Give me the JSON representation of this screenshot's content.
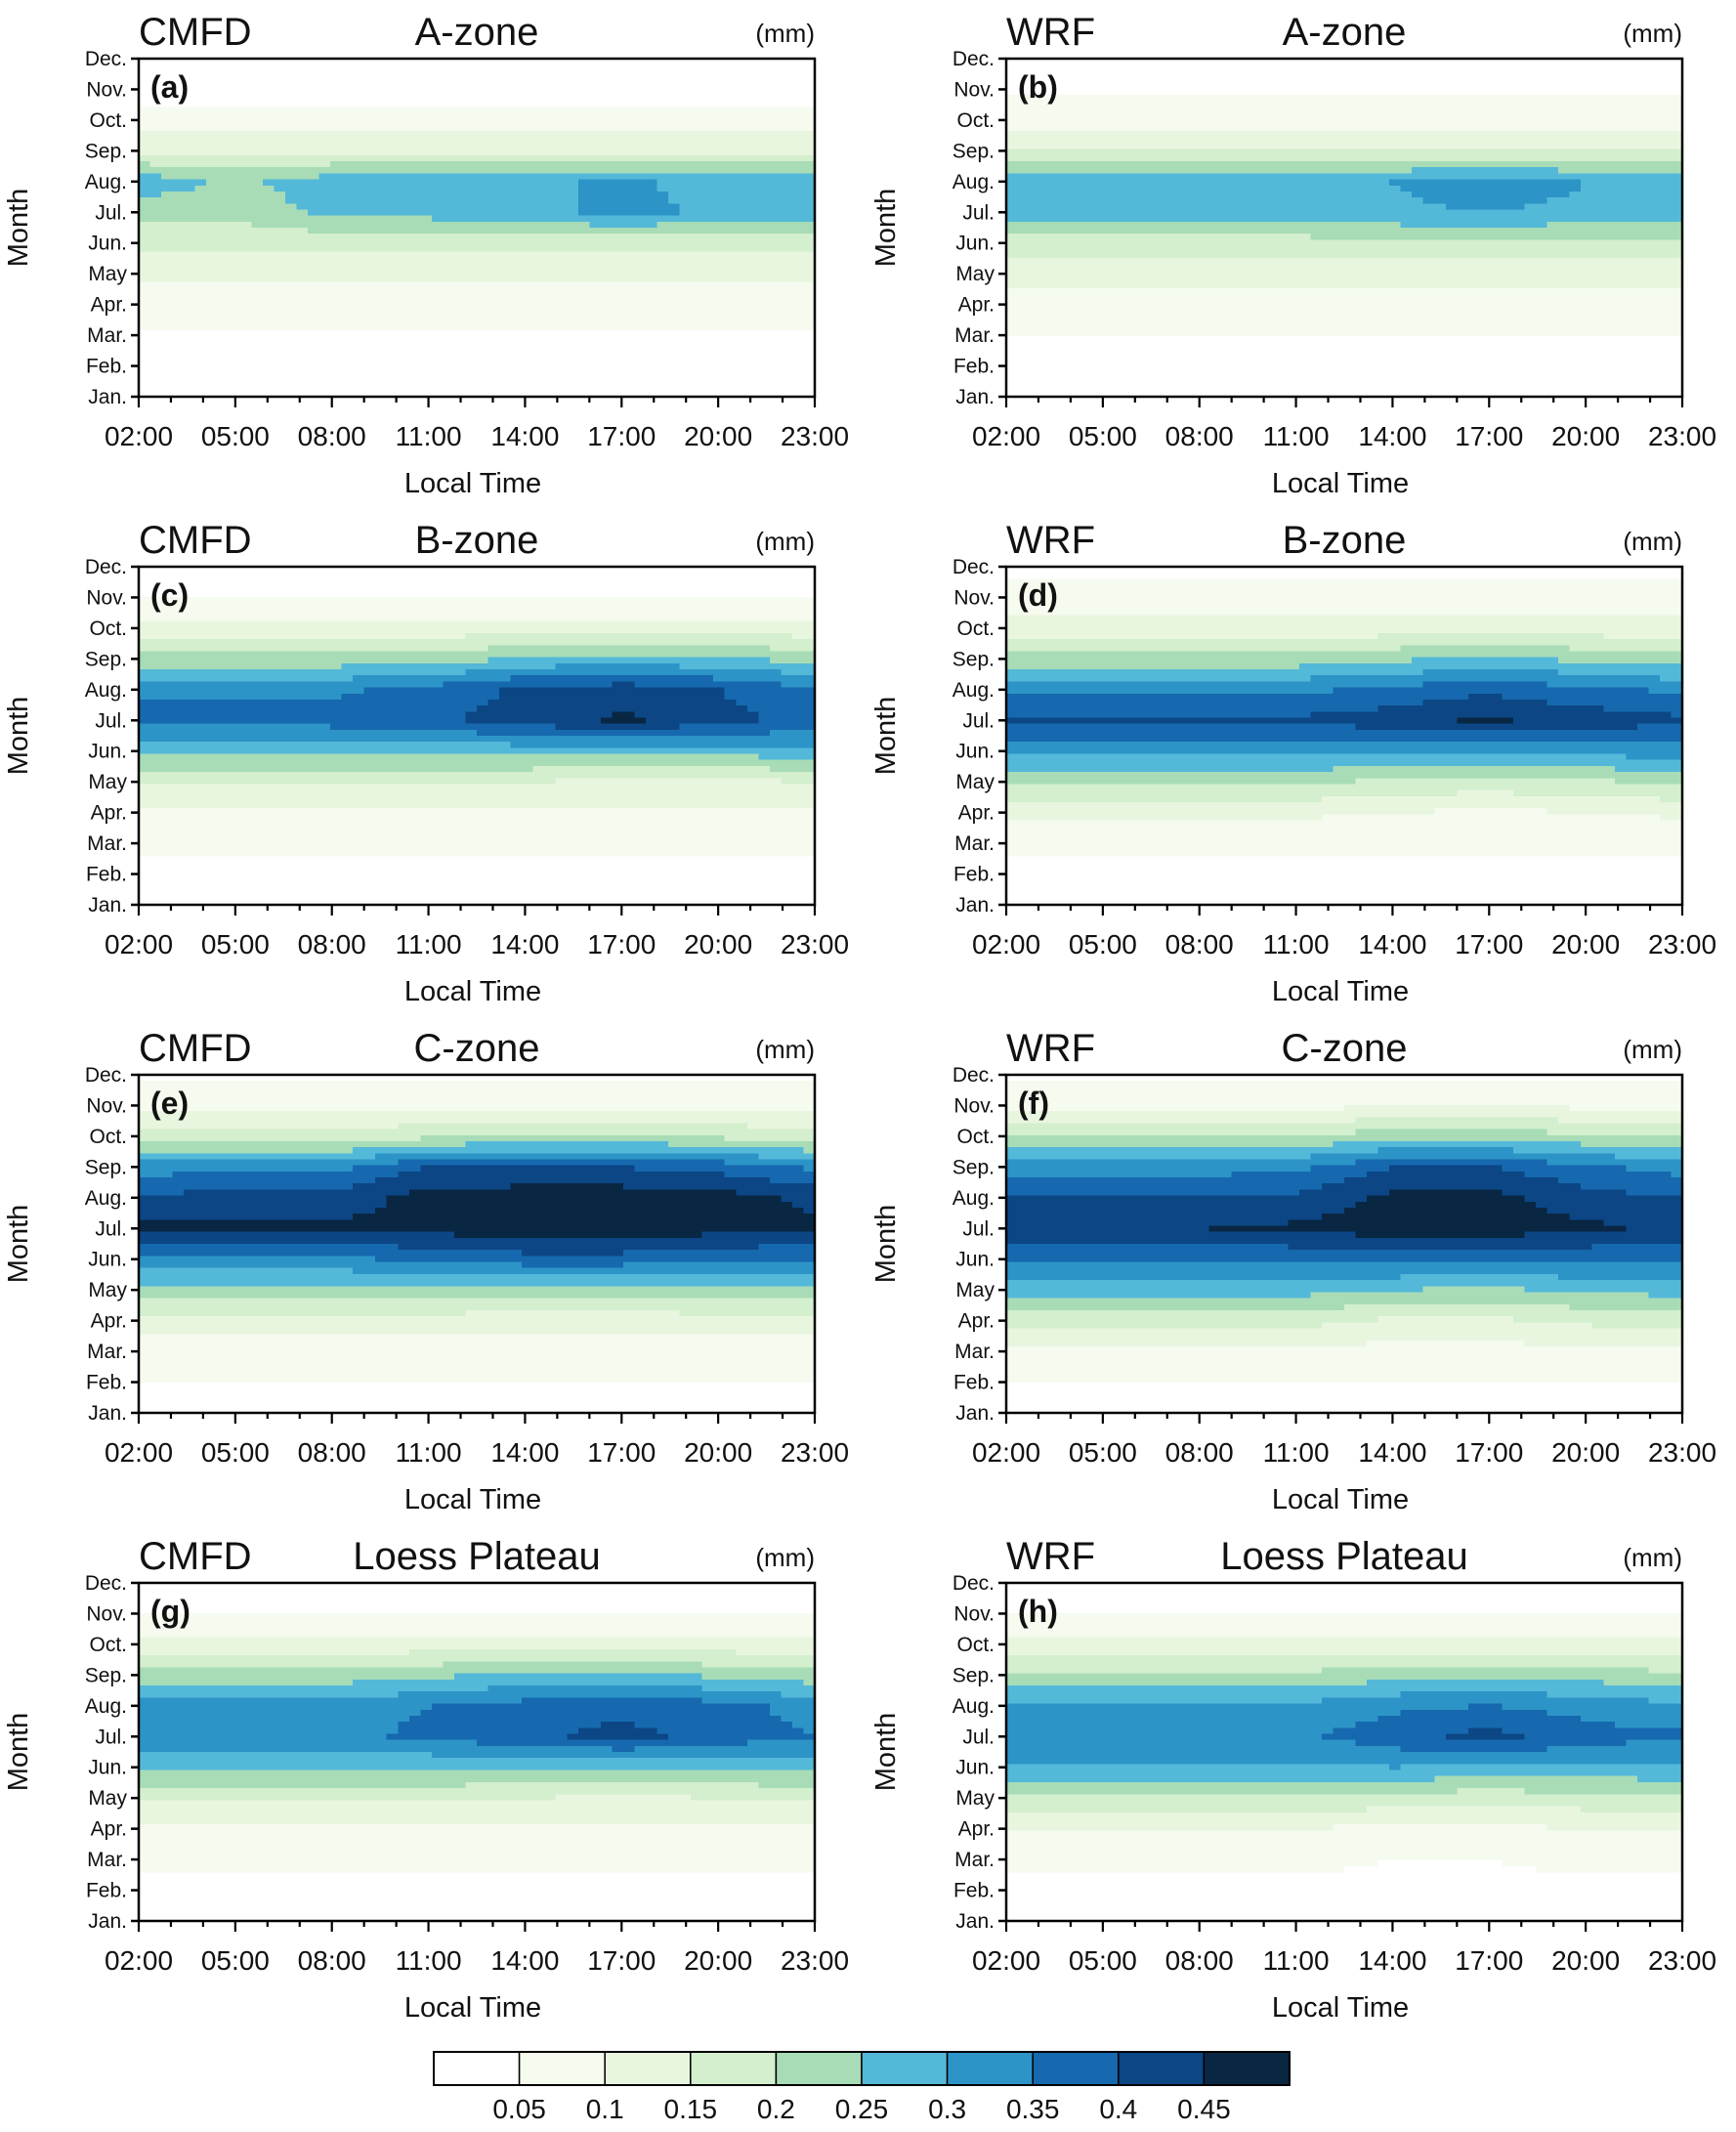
{
  "chart_data": {
    "type": "heatmap",
    "x": [
      "02:00",
      "05:00",
      "08:00",
      "11:00",
      "14:00",
      "17:00",
      "20:00",
      "23:00"
    ],
    "y": [
      "Jan.",
      "Feb.",
      "Mar.",
      "Apr.",
      "May",
      "Jun.",
      "Jul.",
      "Aug.",
      "Sep.",
      "Oct.",
      "Nov.",
      "Dec."
    ],
    "xlabel": "Local Time",
    "ylabel": "Month",
    "unit": "(mm)",
    "colorbar": {
      "ticks": [
        "0.05",
        "0.1",
        "0.15",
        "0.2",
        "0.25",
        "0.3",
        "0.35",
        "0.4",
        "0.45"
      ],
      "colors": [
        "#ffffff",
        "#f5fbef",
        "#e8f6df",
        "#d3efcd",
        "#a7dcb6",
        "#54b8d9",
        "#2c94c7",
        "#1669ae",
        "#0c4685",
        "#092743"
      ]
    },
    "panels": [
      {
        "tag": "(a)",
        "source": "CMFD",
        "region": "A-zone",
        "values": [
          [
            0.02,
            0.02,
            0.02,
            0.02,
            0.02,
            0.02,
            0.02,
            0.02
          ],
          [
            0.02,
            0.02,
            0.02,
            0.02,
            0.02,
            0.02,
            0.02,
            0.02
          ],
          [
            0.04,
            0.04,
            0.04,
            0.04,
            0.04,
            0.04,
            0.04,
            0.04
          ],
          [
            0.08,
            0.08,
            0.08,
            0.08,
            0.08,
            0.08,
            0.08,
            0.08
          ],
          [
            0.11,
            0.11,
            0.11,
            0.11,
            0.11,
            0.11,
            0.11,
            0.11
          ],
          [
            0.16,
            0.16,
            0.17,
            0.17,
            0.17,
            0.16,
            0.16,
            0.17
          ],
          [
            0.22,
            0.22,
            0.26,
            0.27,
            0.28,
            0.32,
            0.29,
            0.27
          ],
          [
            0.28,
            0.24,
            0.28,
            0.28,
            0.29,
            0.31,
            0.28,
            0.28
          ],
          [
            0.14,
            0.14,
            0.14,
            0.14,
            0.14,
            0.14,
            0.14,
            0.14
          ],
          [
            0.07,
            0.07,
            0.07,
            0.07,
            0.07,
            0.07,
            0.07,
            0.07
          ],
          [
            0.02,
            0.02,
            0.02,
            0.02,
            0.02,
            0.02,
            0.02,
            0.02
          ],
          [
            0.01,
            0.01,
            0.01,
            0.01,
            0.01,
            0.01,
            0.01,
            0.01
          ]
        ]
      },
      {
        "tag": "(b)",
        "source": "WRF",
        "region": "A-zone",
        "values": [
          [
            0.02,
            0.02,
            0.02,
            0.02,
            0.02,
            0.02,
            0.02,
            0.02
          ],
          [
            0.03,
            0.03,
            0.03,
            0.03,
            0.03,
            0.03,
            0.03,
            0.03
          ],
          [
            0.05,
            0.05,
            0.05,
            0.05,
            0.05,
            0.05,
            0.05,
            0.05
          ],
          [
            0.08,
            0.08,
            0.08,
            0.08,
            0.08,
            0.08,
            0.08,
            0.08
          ],
          [
            0.12,
            0.12,
            0.12,
            0.12,
            0.12,
            0.12,
            0.12,
            0.12
          ],
          [
            0.18,
            0.18,
            0.18,
            0.18,
            0.19,
            0.19,
            0.18,
            0.18
          ],
          [
            0.27,
            0.27,
            0.27,
            0.27,
            0.29,
            0.3,
            0.29,
            0.28
          ],
          [
            0.29,
            0.29,
            0.29,
            0.29,
            0.3,
            0.33,
            0.3,
            0.29
          ],
          [
            0.15,
            0.15,
            0.15,
            0.15,
            0.15,
            0.15,
            0.15,
            0.15
          ],
          [
            0.08,
            0.08,
            0.08,
            0.08,
            0.08,
            0.08,
            0.08,
            0.08
          ],
          [
            0.04,
            0.04,
            0.04,
            0.04,
            0.04,
            0.04,
            0.04,
            0.04
          ],
          [
            0.02,
            0.02,
            0.02,
            0.02,
            0.02,
            0.02,
            0.02,
            0.02
          ]
        ]
      },
      {
        "tag": "(c)",
        "source": "CMFD",
        "region": "B-zone",
        "values": [
          [
            0.03,
            0.03,
            0.03,
            0.03,
            0.03,
            0.03,
            0.03,
            0.03
          ],
          [
            0.04,
            0.04,
            0.04,
            0.04,
            0.04,
            0.04,
            0.04,
            0.04
          ],
          [
            0.06,
            0.06,
            0.06,
            0.06,
            0.06,
            0.06,
            0.06,
            0.06
          ],
          [
            0.09,
            0.09,
            0.09,
            0.09,
            0.09,
            0.09,
            0.09,
            0.09
          ],
          [
            0.16,
            0.16,
            0.16,
            0.16,
            0.15,
            0.14,
            0.14,
            0.15
          ],
          [
            0.27,
            0.27,
            0.27,
            0.27,
            0.27,
            0.26,
            0.27,
            0.28
          ],
          [
            0.37,
            0.37,
            0.37,
            0.39,
            0.42,
            0.46,
            0.42,
            0.38
          ],
          [
            0.34,
            0.34,
            0.34,
            0.37,
            0.41,
            0.43,
            0.4,
            0.36
          ],
          [
            0.22,
            0.22,
            0.22,
            0.22,
            0.26,
            0.27,
            0.26,
            0.23
          ],
          [
            0.12,
            0.12,
            0.12,
            0.12,
            0.12,
            0.12,
            0.12,
            0.12
          ],
          [
            0.05,
            0.05,
            0.05,
            0.05,
            0.05,
            0.05,
            0.05,
            0.05
          ],
          [
            0.03,
            0.03,
            0.03,
            0.03,
            0.03,
            0.03,
            0.03,
            0.03
          ]
        ]
      },
      {
        "tag": "(d)",
        "source": "WRF",
        "region": "B-zone",
        "values": [
          [
            0.03,
            0.03,
            0.03,
            0.03,
            0.03,
            0.03,
            0.03,
            0.03
          ],
          [
            0.04,
            0.04,
            0.04,
            0.04,
            0.04,
            0.04,
            0.04,
            0.04
          ],
          [
            0.06,
            0.06,
            0.06,
            0.06,
            0.06,
            0.06,
            0.06,
            0.06
          ],
          [
            0.11,
            0.11,
            0.11,
            0.11,
            0.1,
            0.09,
            0.1,
            0.11
          ],
          [
            0.21,
            0.21,
            0.21,
            0.21,
            0.19,
            0.18,
            0.19,
            0.21
          ],
          [
            0.32,
            0.32,
            0.32,
            0.32,
            0.31,
            0.31,
            0.32,
            0.33
          ],
          [
            0.41,
            0.41,
            0.41,
            0.41,
            0.43,
            0.46,
            0.43,
            0.41
          ],
          [
            0.34,
            0.34,
            0.34,
            0.34,
            0.36,
            0.39,
            0.36,
            0.34
          ],
          [
            0.22,
            0.22,
            0.22,
            0.22,
            0.24,
            0.26,
            0.24,
            0.22
          ],
          [
            0.12,
            0.12,
            0.12,
            0.12,
            0.12,
            0.12,
            0.12,
            0.12
          ],
          [
            0.07,
            0.07,
            0.07,
            0.07,
            0.07,
            0.07,
            0.07,
            0.07
          ],
          [
            0.04,
            0.04,
            0.04,
            0.04,
            0.04,
            0.04,
            0.04,
            0.04
          ]
        ]
      },
      {
        "tag": "(e)",
        "source": "CMFD",
        "region": "C-zone",
        "values": [
          [
            0.04,
            0.04,
            0.04,
            0.04,
            0.04,
            0.04,
            0.04,
            0.04
          ],
          [
            0.05,
            0.05,
            0.05,
            0.05,
            0.05,
            0.05,
            0.05,
            0.05
          ],
          [
            0.07,
            0.07,
            0.07,
            0.07,
            0.07,
            0.07,
            0.07,
            0.07
          ],
          [
            0.13,
            0.13,
            0.13,
            0.13,
            0.12,
            0.12,
            0.13,
            0.13
          ],
          [
            0.23,
            0.23,
            0.23,
            0.23,
            0.22,
            0.22,
            0.23,
            0.23
          ],
          [
            0.34,
            0.34,
            0.34,
            0.36,
            0.38,
            0.38,
            0.36,
            0.35
          ],
          [
            0.46,
            0.46,
            0.46,
            0.47,
            0.48,
            0.48,
            0.47,
            0.46
          ],
          [
            0.41,
            0.42,
            0.42,
            0.47,
            0.48,
            0.48,
            0.47,
            0.44
          ],
          [
            0.33,
            0.33,
            0.33,
            0.4,
            0.4,
            0.4,
            0.38,
            0.34
          ],
          [
            0.17,
            0.17,
            0.17,
            0.19,
            0.21,
            0.21,
            0.19,
            0.17
          ],
          [
            0.08,
            0.08,
            0.08,
            0.08,
            0.08,
            0.08,
            0.08,
            0.08
          ],
          [
            0.04,
            0.04,
            0.04,
            0.04,
            0.04,
            0.04,
            0.04,
            0.04
          ]
        ]
      },
      {
        "tag": "(f)",
        "source": "WRF",
        "region": "C-zone",
        "values": [
          [
            0.04,
            0.04,
            0.04,
            0.04,
            0.04,
            0.04,
            0.04,
            0.04
          ],
          [
            0.05,
            0.05,
            0.05,
            0.05,
            0.05,
            0.05,
            0.05,
            0.05
          ],
          [
            0.09,
            0.09,
            0.09,
            0.09,
            0.08,
            0.08,
            0.09,
            0.09
          ],
          [
            0.17,
            0.17,
            0.17,
            0.17,
            0.14,
            0.14,
            0.16,
            0.17
          ],
          [
            0.27,
            0.27,
            0.27,
            0.27,
            0.25,
            0.24,
            0.26,
            0.27
          ],
          [
            0.36,
            0.36,
            0.36,
            0.36,
            0.37,
            0.37,
            0.36,
            0.36
          ],
          [
            0.44,
            0.44,
            0.45,
            0.46,
            0.48,
            0.48,
            0.46,
            0.44
          ],
          [
            0.4,
            0.4,
            0.4,
            0.41,
            0.46,
            0.47,
            0.42,
            0.4
          ],
          [
            0.33,
            0.33,
            0.33,
            0.34,
            0.4,
            0.4,
            0.36,
            0.33
          ],
          [
            0.2,
            0.2,
            0.2,
            0.2,
            0.23,
            0.23,
            0.21,
            0.2
          ],
          [
            0.09,
            0.09,
            0.09,
            0.09,
            0.09,
            0.09,
            0.09,
            0.09
          ],
          [
            0.04,
            0.04,
            0.04,
            0.04,
            0.04,
            0.04,
            0.04,
            0.04
          ]
        ]
      },
      {
        "tag": "(g)",
        "source": "CMFD",
        "region": "Loess Plateau",
        "values": [
          [
            0.03,
            0.03,
            0.03,
            0.03,
            0.03,
            0.03,
            0.03,
            0.03
          ],
          [
            0.04,
            0.04,
            0.04,
            0.04,
            0.04,
            0.04,
            0.04,
            0.04
          ],
          [
            0.06,
            0.06,
            0.06,
            0.06,
            0.06,
            0.06,
            0.06,
            0.06
          ],
          [
            0.09,
            0.09,
            0.09,
            0.09,
            0.09,
            0.09,
            0.09,
            0.09
          ],
          [
            0.16,
            0.16,
            0.16,
            0.16,
            0.15,
            0.14,
            0.15,
            0.16
          ],
          [
            0.26,
            0.26,
            0.26,
            0.26,
            0.26,
            0.25,
            0.26,
            0.27
          ],
          [
            0.34,
            0.34,
            0.34,
            0.36,
            0.39,
            0.42,
            0.38,
            0.35
          ],
          [
            0.32,
            0.32,
            0.32,
            0.35,
            0.37,
            0.38,
            0.37,
            0.33
          ],
          [
            0.22,
            0.22,
            0.22,
            0.24,
            0.26,
            0.26,
            0.24,
            0.22
          ],
          [
            0.12,
            0.12,
            0.12,
            0.12,
            0.12,
            0.12,
            0.12,
            0.12
          ],
          [
            0.05,
            0.05,
            0.05,
            0.05,
            0.05,
            0.05,
            0.05,
            0.05
          ],
          [
            0.03,
            0.03,
            0.03,
            0.03,
            0.03,
            0.03,
            0.03,
            0.03
          ]
        ]
      },
      {
        "tag": "(h)",
        "source": "WRF",
        "region": "Loess Plateau",
        "values": [
          [
            0.03,
            0.03,
            0.03,
            0.03,
            0.03,
            0.03,
            0.03,
            0.03
          ],
          [
            0.04,
            0.04,
            0.04,
            0.04,
            0.04,
            0.04,
            0.04,
            0.04
          ],
          [
            0.06,
            0.06,
            0.06,
            0.06,
            0.05,
            0.05,
            0.06,
            0.06
          ],
          [
            0.1,
            0.1,
            0.1,
            0.1,
            0.09,
            0.09,
            0.1,
            0.1
          ],
          [
            0.19,
            0.19,
            0.19,
            0.19,
            0.18,
            0.17,
            0.18,
            0.19
          ],
          [
            0.29,
            0.29,
            0.29,
            0.29,
            0.3,
            0.29,
            0.29,
            0.29
          ],
          [
            0.34,
            0.34,
            0.34,
            0.34,
            0.38,
            0.42,
            0.37,
            0.36
          ],
          [
            0.31,
            0.31,
            0.31,
            0.31,
            0.34,
            0.35,
            0.33,
            0.31
          ],
          [
            0.21,
            0.21,
            0.21,
            0.21,
            0.23,
            0.24,
            0.23,
            0.21
          ],
          [
            0.11,
            0.11,
            0.11,
            0.11,
            0.11,
            0.11,
            0.11,
            0.11
          ],
          [
            0.05,
            0.05,
            0.05,
            0.05,
            0.05,
            0.05,
            0.05,
            0.05
          ],
          [
            0.03,
            0.03,
            0.03,
            0.03,
            0.03,
            0.03,
            0.03,
            0.03
          ]
        ]
      }
    ]
  }
}
